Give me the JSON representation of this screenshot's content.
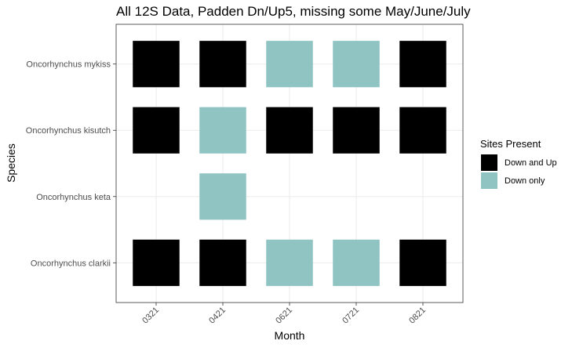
{
  "chart_data": {
    "type": "heatmap",
    "title": "All 12S Data, Padden Dn/Up5, missing some May/June/July",
    "xlabel": "Month",
    "ylabel": "Species",
    "x_categories": [
      "0321",
      "0421",
      "0621",
      "0721",
      "0821"
    ],
    "y_categories": [
      "Oncorhynchus mykiss",
      "Oncorhynchus kisutch",
      "Oncorhynchus keta",
      "Oncorhynchus clarkii"
    ],
    "legend": {
      "title": "Sites Present",
      "position": "right",
      "entries": [
        {
          "label": "Down and Up",
          "color": "#000000"
        },
        {
          "label": "Down only",
          "color": "#8fc4c3"
        }
      ]
    },
    "cells": [
      {
        "x": "0321",
        "y": "Oncorhynchus mykiss",
        "value": "Down and Up"
      },
      {
        "x": "0421",
        "y": "Oncorhynchus mykiss",
        "value": "Down and Up"
      },
      {
        "x": "0621",
        "y": "Oncorhynchus mykiss",
        "value": "Down only"
      },
      {
        "x": "0721",
        "y": "Oncorhynchus mykiss",
        "value": "Down only"
      },
      {
        "x": "0821",
        "y": "Oncorhynchus mykiss",
        "value": "Down and Up"
      },
      {
        "x": "0321",
        "y": "Oncorhynchus kisutch",
        "value": "Down and Up"
      },
      {
        "x": "0421",
        "y": "Oncorhynchus kisutch",
        "value": "Down only"
      },
      {
        "x": "0621",
        "y": "Oncorhynchus kisutch",
        "value": "Down and Up"
      },
      {
        "x": "0721",
        "y": "Oncorhynchus kisutch",
        "value": "Down and Up"
      },
      {
        "x": "0821",
        "y": "Oncorhynchus kisutch",
        "value": "Down and Up"
      },
      {
        "x": "0421",
        "y": "Oncorhynchus keta",
        "value": "Down only"
      },
      {
        "x": "0321",
        "y": "Oncorhynchus clarkii",
        "value": "Down and Up"
      },
      {
        "x": "0421",
        "y": "Oncorhynchus clarkii",
        "value": "Down and Up"
      },
      {
        "x": "0621",
        "y": "Oncorhynchus clarkii",
        "value": "Down only"
      },
      {
        "x": "0721",
        "y": "Oncorhynchus clarkii",
        "value": "Down only"
      },
      {
        "x": "0821",
        "y": "Oncorhynchus clarkii",
        "value": "Down and Up"
      }
    ],
    "grid": true,
    "panel_border": true
  }
}
